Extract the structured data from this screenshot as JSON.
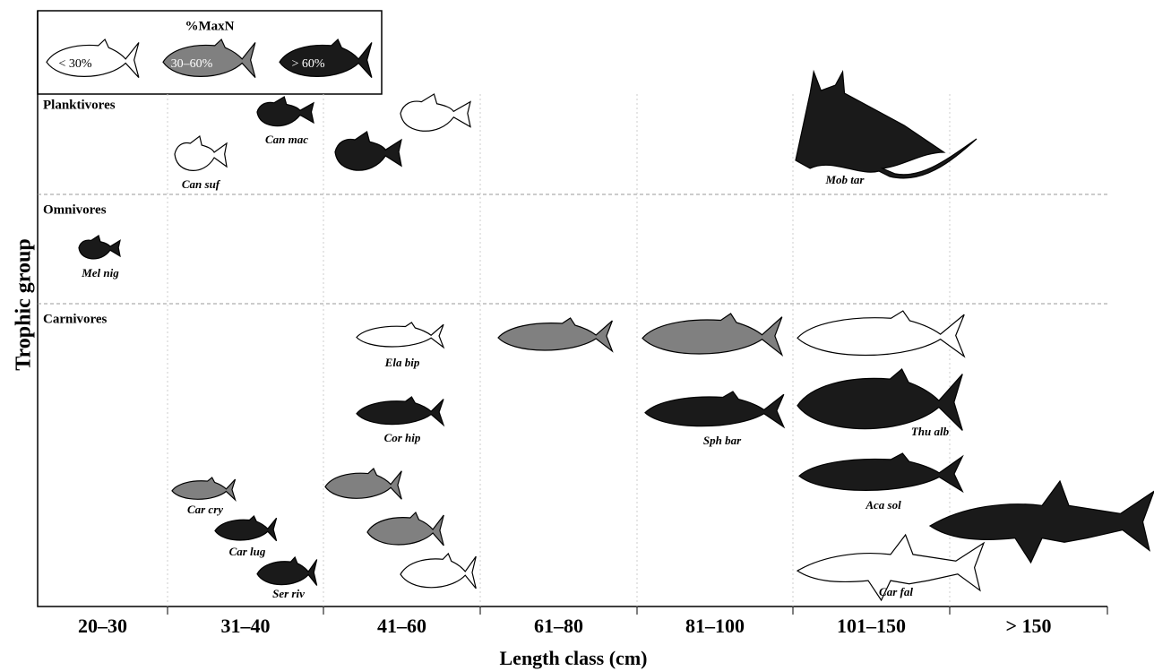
{
  "legend": {
    "title": "%MaxN",
    "items": [
      "< 30%",
      "30–60%",
      "> 60%"
    ]
  },
  "axes": {
    "y_label": "Trophic group",
    "x_label": "Length class (cm)"
  },
  "length_classes": [
    "20–30",
    "31–40",
    "41–60",
    "61–80",
    "81–100",
    "101–150",
    "> 150"
  ],
  "groups": [
    {
      "label": "Planktivores",
      "species": [
        "Can mac",
        "Can suf",
        "Mob tar"
      ]
    },
    {
      "label": "Omnivores",
      "species": [
        "Mel nig"
      ]
    },
    {
      "label": "Carnivores",
      "species": [
        "Ela bip",
        "Cor hip",
        "Sph bar",
        "Thu alb",
        "Aca sol",
        "Car cry",
        "Car lug",
        "Ser riv",
        "Car fal"
      ]
    }
  ]
}
